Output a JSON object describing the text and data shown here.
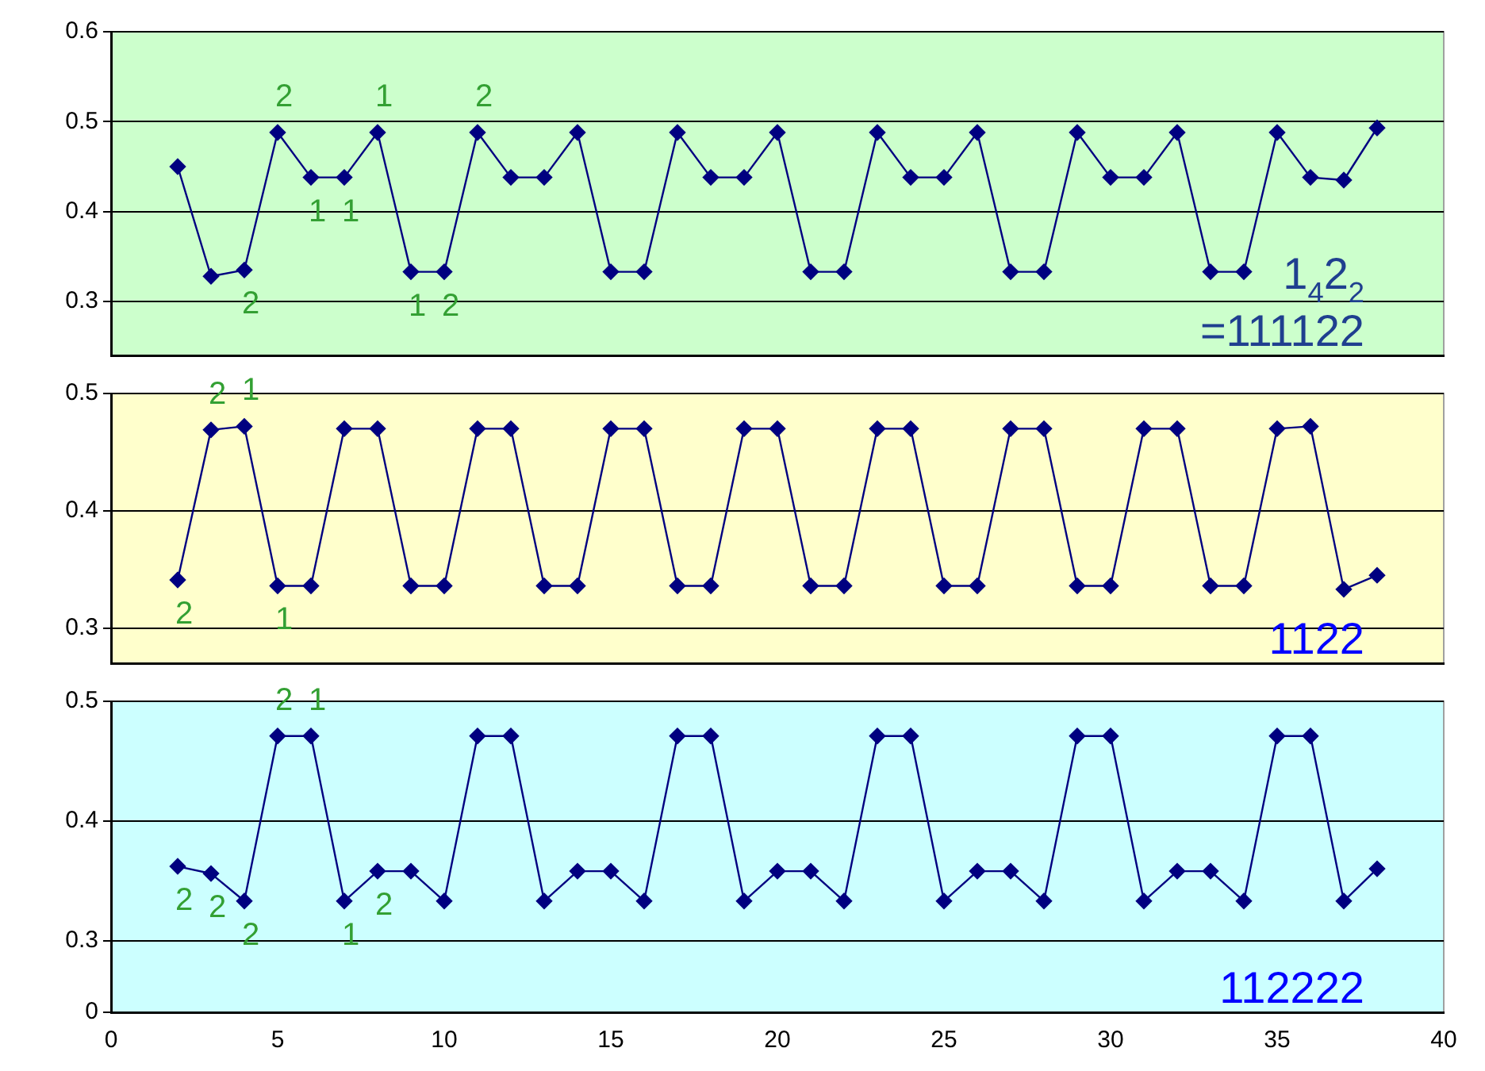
{
  "chart_data": [
    {
      "type": "line",
      "x": [
        2,
        3,
        4,
        5,
        6,
        7,
        8,
        9,
        10,
        11,
        12,
        13,
        14,
        15,
        16,
        17,
        18,
        19,
        20,
        21,
        22,
        23,
        24,
        25,
        26,
        27,
        28,
        29,
        30,
        31,
        32,
        33,
        34,
        35,
        36,
        37,
        38
      ],
      "series": [
        {
          "color": "#000080",
          "values": [
            0.45,
            0.328,
            0.335,
            0.488,
            0.438,
            0.438,
            0.488,
            0.333,
            0.333,
            0.488,
            0.438,
            0.438,
            0.488,
            0.333,
            0.333,
            0.488,
            0.438,
            0.438,
            0.488,
            0.333,
            0.333,
            0.488,
            0.438,
            0.438,
            0.488,
            0.333,
            0.333,
            0.488,
            0.438,
            0.438,
            0.488,
            0.333,
            0.333,
            0.488,
            0.438,
            0.435,
            0.493
          ]
        }
      ],
      "xlim": [
        0,
        40
      ],
      "xticks": [
        0,
        5,
        10,
        15,
        20,
        25,
        30,
        35,
        40
      ],
      "ylim": [
        0.24,
        0.6
      ],
      "yticks": [
        0.3,
        0.4,
        0.5,
        0.6
      ],
      "grid": "y",
      "marker": "diamond",
      "tick_labels": "y",
      "annotations": [
        {
          "text": "2",
          "x": 5,
          "y": 0.488
        },
        {
          "text": "1",
          "x": 8,
          "y": 0.488
        },
        {
          "text": "2",
          "x": 11,
          "y": 0.488
        },
        {
          "text": "1",
          "x": 6,
          "y": 0.438
        },
        {
          "text": "1",
          "x": 7,
          "y": 0.438
        },
        {
          "text": "2",
          "x": 4,
          "y": 0.335
        },
        {
          "text": "1",
          "x": 9,
          "y": 0.333
        },
        {
          "text": "2",
          "x": 10,
          "y": 0.333
        },
        "1$_{4}$2$_{2}$",
        "=111122"
      ]
    },
    {
      "type": "line",
      "x": [
        2,
        3,
        4,
        5,
        6,
        7,
        8,
        9,
        10,
        11,
        12,
        13,
        14,
        15,
        16,
        17,
        18,
        19,
        20,
        21,
        22,
        23,
        24,
        25,
        26,
        27,
        28,
        29,
        30,
        31,
        32,
        33,
        34,
        35,
        36,
        37,
        38
      ],
      "series": [
        {
          "color": "#000080",
          "values": [
            0.341,
            0.469,
            0.472,
            0.336,
            0.336,
            0.47,
            0.47,
            0.336,
            0.336,
            0.47,
            0.47,
            0.336,
            0.336,
            0.47,
            0.47,
            0.336,
            0.336,
            0.47,
            0.47,
            0.336,
            0.336,
            0.47,
            0.47,
            0.336,
            0.336,
            0.47,
            0.47,
            0.336,
            0.336,
            0.47,
            0.47,
            0.336,
            0.336,
            0.47,
            0.472,
            0.333,
            0.345
          ]
        }
      ],
      "xlim": [
        0,
        40
      ],
      "xticks": [
        0,
        5,
        10,
        15,
        20,
        25,
        30,
        35,
        40
      ],
      "ylim": [
        0.27,
        0.5
      ],
      "yticks": [
        0.3,
        0.4,
        0.5
      ],
      "grid": "y",
      "marker": "diamond",
      "tick_labels": "y",
      "annotations": [
        {
          "text": "2",
          "x": 3,
          "y": 0.469
        },
        {
          "text": "1",
          "x": 4,
          "y": 0.472
        },
        {
          "text": "2",
          "x": 2,
          "y": 0.341
        },
        {
          "text": "1",
          "x": 5,
          "y": 0.336
        },
        "1122"
      ]
    },
    {
      "type": "line",
      "x": [
        2,
        3,
        4,
        5,
        6,
        7,
        8,
        9,
        10,
        11,
        12,
        13,
        14,
        15,
        16,
        17,
        18,
        19,
        20,
        21,
        22,
        23,
        24,
        25,
        26,
        27,
        28,
        29,
        30,
        31,
        32,
        33,
        34,
        35,
        36,
        37,
        38
      ],
      "series": [
        {
          "color": "#000080",
          "values": [
            0.362,
            0.356,
            0.333,
            0.471,
            0.471,
            0.333,
            0.358,
            0.358,
            0.333,
            0.471,
            0.471,
            0.333,
            0.358,
            0.358,
            0.333,
            0.471,
            0.471,
            0.333,
            0.358,
            0.358,
            0.333,
            0.471,
            0.471,
            0.333,
            0.358,
            0.358,
            0.333,
            0.471,
            0.471,
            0.333,
            0.358,
            0.358,
            0.333,
            0.471,
            0.471,
            0.333,
            0.36
          ]
        }
      ],
      "xlim": [
        0,
        40
      ],
      "xticks": [
        0,
        5,
        10,
        15,
        20,
        25,
        30,
        35,
        40
      ],
      "ylim": [
        0.24,
        0.5
      ],
      "yticks": [
        {
          "value": 0.24,
          "label": "0"
        },
        0.3,
        0.4,
        0.5
      ],
      "grid": "y",
      "marker": "diamond",
      "annotations": [
        {
          "text": "2",
          "x": 5,
          "y": 0.471
        },
        {
          "text": "1",
          "x": 6,
          "y": 0.471
        },
        {
          "text": "2",
          "x": 8,
          "y": 0.358
        },
        {
          "text": "2",
          "x": 2,
          "y": 0.362
        },
        {
          "text": "2",
          "x": 3,
          "y": 0.356
        },
        {
          "text": "2",
          "x": 4,
          "y": 0.333
        },
        {
          "text": "1",
          "x": 7,
          "y": 0.333
        },
        "112222"
      ]
    }
  ]
}
